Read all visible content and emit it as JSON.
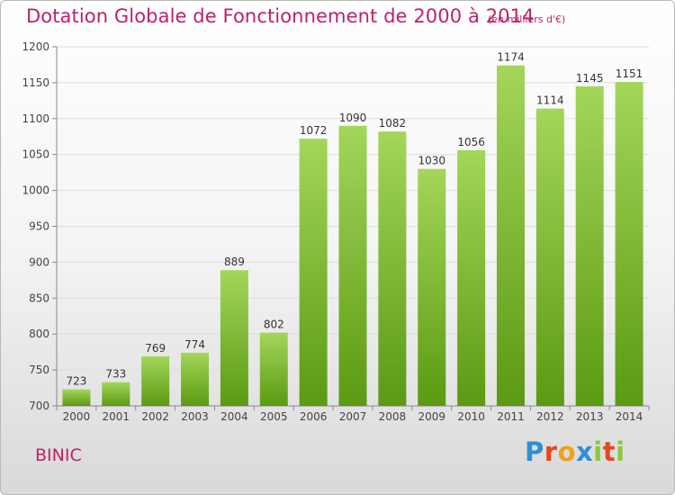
{
  "title": "Dotation Globale de Fonctionnement de 2000 à 2014",
  "subtitle": "(en milliers d'€)",
  "commune": "BINIC",
  "logo": {
    "letters": [
      "P",
      "r",
      "o",
      "x",
      "i",
      "t",
      "i"
    ],
    "colors": [
      "#2e8fd6",
      "#e8461e",
      "#f0a21a",
      "#2e8fd6",
      "#8cc63f",
      "#e8461e",
      "#8cc63f"
    ]
  },
  "colors": {
    "accent": "#c0206a",
    "bar_top": "#a3d65a",
    "bar_bottom": "#5b9a12"
  },
  "chart_data": {
    "type": "bar",
    "categories": [
      "2000",
      "2001",
      "2002",
      "2003",
      "2004",
      "2005",
      "2006",
      "2007",
      "2008",
      "2009",
      "2010",
      "2011",
      "2012",
      "2013",
      "2014"
    ],
    "values": [
      723,
      733,
      769,
      774,
      889,
      802,
      1072,
      1090,
      1082,
      1030,
      1056,
      1174,
      1114,
      1145,
      1151
    ],
    "data_labels": [
      "723",
      "733",
      "769",
      "774",
      "889",
      "802",
      "1072",
      "1090",
      "1082",
      "1030",
      "1056",
      "1174",
      "1114",
      "1145",
      "1151"
    ],
    "ylim": [
      700,
      1200
    ],
    "yticks": [
      700,
      750,
      800,
      850,
      900,
      950,
      1000,
      1050,
      1100,
      1150,
      1200
    ],
    "grid": true
  }
}
